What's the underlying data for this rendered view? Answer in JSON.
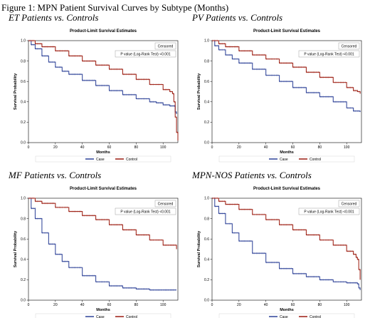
{
  "figure_title": "Figure 1: MPN Patient Survival Curves by Subtype (Months)",
  "colors": {
    "case": "#3b4e9e",
    "control": "#a22a1f"
  },
  "chart_data": [
    {
      "type": "line",
      "panel_heading": "ET Patients vs. Controls",
      "title": "Product-Limit Survival Estimates",
      "xlabel": "Months",
      "ylabel": "Survival Probability",
      "xlim": [
        0,
        111
      ],
      "ylim": [
        0,
        1
      ],
      "x_ticks": [
        "0",
        "20",
        "40",
        "60",
        "80",
        "100"
      ],
      "y_ticks": [
        "0.0",
        "0.2",
        "0.4",
        "0.6",
        "0.8",
        "1.0"
      ],
      "censored_label": "Censored",
      "pvalue_label": "P value (Log-Rank Test) <0.001",
      "legend": [
        "Case",
        "Control"
      ],
      "series": [
        {
          "name": "Case",
          "x": [
            0,
            2,
            5,
            10,
            15,
            20,
            25,
            30,
            40,
            50,
            60,
            70,
            80,
            90,
            95,
            100,
            105,
            108,
            109,
            110
          ],
          "y": [
            1.0,
            0.96,
            0.92,
            0.85,
            0.79,
            0.74,
            0.7,
            0.67,
            0.61,
            0.56,
            0.51,
            0.47,
            0.43,
            0.4,
            0.39,
            0.37,
            0.36,
            0.36,
            0.3,
            0.28
          ]
        },
        {
          "name": "Control",
          "x": [
            0,
            5,
            10,
            20,
            30,
            40,
            50,
            60,
            70,
            80,
            90,
            100,
            105,
            107,
            108,
            109,
            110,
            111
          ],
          "y": [
            1.0,
            0.97,
            0.94,
            0.9,
            0.85,
            0.8,
            0.76,
            0.72,
            0.67,
            0.62,
            0.57,
            0.52,
            0.5,
            0.48,
            0.4,
            0.25,
            0.1,
            0.02
          ]
        }
      ]
    },
    {
      "type": "line",
      "panel_heading": "PV Patients vs. Controls",
      "title": "Product-Limit Survival Estimates",
      "xlabel": "Months",
      "ylabel": "Survival Probability",
      "xlim": [
        0,
        111
      ],
      "ylim": [
        0,
        1
      ],
      "x_ticks": [
        "0",
        "20",
        "40",
        "60",
        "80",
        "100"
      ],
      "y_ticks": [
        "0.0",
        "0.2",
        "0.4",
        "0.6",
        "0.8",
        "1.0"
      ],
      "censored_label": "Censored",
      "pvalue_label": "P value (Log-Rank Test) <0.001",
      "legend": [
        "Case",
        "Control"
      ],
      "series": [
        {
          "name": "Case",
          "x": [
            0,
            2,
            5,
            10,
            15,
            20,
            30,
            40,
            50,
            60,
            70,
            80,
            90,
            100,
            105,
            110
          ],
          "y": [
            1.0,
            0.95,
            0.91,
            0.86,
            0.82,
            0.78,
            0.72,
            0.66,
            0.6,
            0.54,
            0.49,
            0.45,
            0.4,
            0.34,
            0.31,
            0.3
          ]
        },
        {
          "name": "Control",
          "x": [
            0,
            5,
            10,
            20,
            30,
            40,
            50,
            60,
            70,
            80,
            90,
            100,
            105,
            108,
            110
          ],
          "y": [
            1.0,
            0.97,
            0.94,
            0.9,
            0.86,
            0.82,
            0.78,
            0.74,
            0.69,
            0.64,
            0.59,
            0.54,
            0.51,
            0.5,
            0.48
          ]
        }
      ]
    },
    {
      "type": "line",
      "panel_heading": "MF Patients vs. Controls",
      "title": "Product-Limit Survival Estimates",
      "xlabel": "Months",
      "ylabel": "Survival Probability",
      "xlim": [
        0,
        111
      ],
      "ylim": [
        0,
        1
      ],
      "x_ticks": [
        "0",
        "20",
        "40",
        "60",
        "80",
        "100"
      ],
      "y_ticks": [
        "0.0",
        "0.2",
        "0.4",
        "0.6",
        "0.8",
        "1.0"
      ],
      "censored_label": "Censored",
      "pvalue_label": "P value (Log-Rank Test) <0.001",
      "legend": [
        "Case",
        "Control"
      ],
      "series": [
        {
          "name": "Case",
          "x": [
            0,
            2,
            5,
            10,
            15,
            20,
            25,
            30,
            40,
            50,
            60,
            70,
            80,
            90,
            100,
            110
          ],
          "y": [
            1.0,
            0.9,
            0.8,
            0.66,
            0.55,
            0.45,
            0.38,
            0.32,
            0.24,
            0.18,
            0.14,
            0.12,
            0.11,
            0.1,
            0.1,
            0.1
          ]
        },
        {
          "name": "Control",
          "x": [
            0,
            5,
            10,
            20,
            30,
            40,
            50,
            60,
            70,
            80,
            90,
            100,
            110
          ],
          "y": [
            1.0,
            0.97,
            0.95,
            0.91,
            0.87,
            0.83,
            0.79,
            0.74,
            0.69,
            0.64,
            0.59,
            0.54,
            0.5
          ]
        }
      ]
    },
    {
      "type": "line",
      "panel_heading": "MPN-NOS Patients vs. Controls",
      "title": "Product-Limit Survival Estimates",
      "xlabel": "Months",
      "ylabel": "Survival Probability",
      "xlim": [
        0,
        111
      ],
      "ylim": [
        0,
        1
      ],
      "x_ticks": [
        "0",
        "20",
        "40",
        "60",
        "80",
        "100"
      ],
      "y_ticks": [
        "0.0",
        "0.2",
        "0.4",
        "0.6",
        "0.8",
        "1.0"
      ],
      "censored_label": "Censored",
      "pvalue_label": "P value (Log-Rank Test) <0.001",
      "legend": [
        "Case",
        "Control"
      ],
      "series": [
        {
          "name": "Case",
          "x": [
            0,
            2,
            5,
            10,
            15,
            20,
            30,
            40,
            50,
            60,
            70,
            80,
            90,
            100,
            108,
            109,
            110
          ],
          "y": [
            1.0,
            0.92,
            0.85,
            0.75,
            0.66,
            0.58,
            0.46,
            0.37,
            0.31,
            0.26,
            0.23,
            0.2,
            0.18,
            0.17,
            0.16,
            0.12,
            0.1
          ]
        },
        {
          "name": "Control",
          "x": [
            0,
            5,
            10,
            20,
            30,
            40,
            50,
            60,
            70,
            80,
            90,
            100,
            105,
            107,
            108,
            109,
            110
          ],
          "y": [
            1.0,
            0.97,
            0.94,
            0.89,
            0.84,
            0.79,
            0.74,
            0.69,
            0.64,
            0.59,
            0.54,
            0.48,
            0.45,
            0.42,
            0.4,
            0.3,
            0.2
          ]
        }
      ]
    }
  ]
}
